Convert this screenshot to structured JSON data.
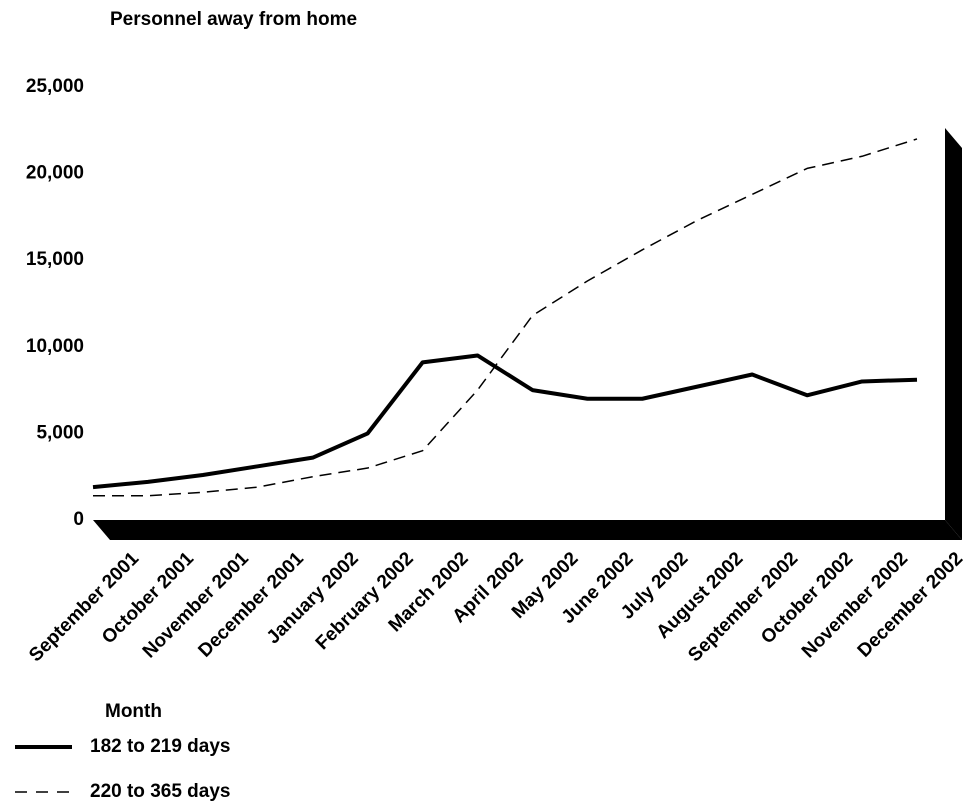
{
  "chart_data": {
    "type": "line",
    "title": "Personnel away from home",
    "x_label": "Month",
    "categories": [
      "September 2001",
      "October 2001",
      "November 2001",
      "December 2001",
      "January 2002",
      "February 2002",
      "March 2002",
      "April 2002",
      "May 2002",
      "June 2002",
      "July 2002",
      "August 2002",
      "September 2002",
      "October 2002",
      "November 2002",
      "December 2002"
    ],
    "series": [
      {
        "name": "182 to 219 days",
        "color": "#000000",
        "dash": "solid",
        "values": [
          1900,
          2200,
          2600,
          3100,
          3600,
          5000,
          9100,
          9500,
          7500,
          7000,
          7000,
          7700,
          8400,
          7200,
          8000,
          8100
        ]
      },
      {
        "name": "220 to 365 days",
        "color": "#000000",
        "dash": "dashed",
        "values": [
          1400,
          1400,
          1600,
          1900,
          2500,
          3000,
          4000,
          7500,
          11800,
          13800,
          15600,
          17300,
          18800,
          20300,
          21000,
          22000
        ]
      }
    ],
    "ylim": [
      0,
      25000
    ],
    "yticks": [
      0,
      {
        "value": 5000,
        "label": "5,000"
      },
      {
        "value": 10000,
        "label": "10,000"
      },
      {
        "value": 15000,
        "label": "15,000"
      },
      {
        "value": 20000,
        "label": "20,000"
      },
      {
        "value": 25000,
        "label": "25,000"
      }
    ],
    "grid": false
  }
}
